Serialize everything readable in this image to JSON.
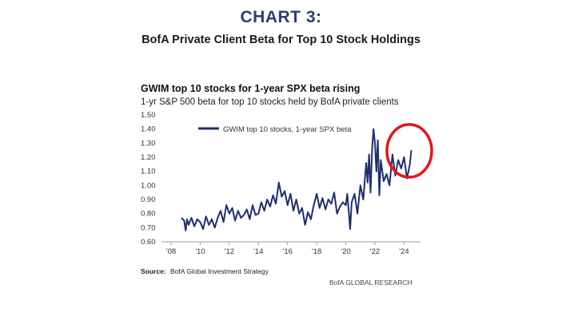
{
  "header": {
    "chart_number": "CHART 3:",
    "subtitle": "BofA Private Client Beta for Top 10 Stock Holdings"
  },
  "chart_data": {
    "type": "line",
    "title": "GWIM top 10 stocks for 1-year SPX beta rising",
    "subtitle": "1-yr S&P 500 beta for top 10 stocks held by BofA private clients",
    "xlabel": "",
    "ylabel": "",
    "ylim": [
      0.6,
      1.5
    ],
    "xlim": [
      2008,
      2024.8
    ],
    "y_ticks": [
      "1.50",
      "1.40",
      "1.30",
      "1.20",
      "1.10",
      "1.00",
      "0.90",
      "0.80",
      "0.70",
      "0.60"
    ],
    "y_tick_values": [
      1.5,
      1.4,
      1.3,
      1.2,
      1.1,
      1.0,
      0.9,
      0.8,
      0.7,
      0.6
    ],
    "x_ticks": [
      "'08",
      "'10",
      "'12",
      "'14",
      "'16",
      "'18",
      "'20",
      "'22",
      "'24"
    ],
    "x_tick_values": [
      2008,
      2010,
      2012,
      2014,
      2016,
      2018,
      2020,
      2022,
      2024
    ],
    "legend_position": "top-left",
    "series": [
      {
        "name": "GWIM top 10 stocks, 1-year SPX beta",
        "color": "#1f2f6e",
        "x": [
          2008.7,
          2008.9,
          2009.0,
          2009.1,
          2009.2,
          2009.4,
          2009.6,
          2009.8,
          2010.0,
          2010.2,
          2010.4,
          2010.6,
          2010.8,
          2011.0,
          2011.2,
          2011.4,
          2011.6,
          2011.8,
          2012.0,
          2012.2,
          2012.4,
          2012.6,
          2012.8,
          2013.0,
          2013.2,
          2013.4,
          2013.6,
          2013.8,
          2014.0,
          2014.2,
          2014.4,
          2014.6,
          2014.8,
          2015.0,
          2015.2,
          2015.4,
          2015.6,
          2015.8,
          2016.0,
          2016.2,
          2016.4,
          2016.6,
          2016.8,
          2017.0,
          2017.2,
          2017.4,
          2017.6,
          2017.8,
          2018.0,
          2018.2,
          2018.4,
          2018.6,
          2018.8,
          2019.0,
          2019.2,
          2019.4,
          2019.6,
          2019.8,
          2020.0,
          2020.1,
          2020.2,
          2020.3,
          2020.4,
          2020.6,
          2020.8,
          2021.0,
          2021.2,
          2021.4,
          2021.5,
          2021.6,
          2021.7,
          2021.8,
          2021.9,
          2022.0,
          2022.1,
          2022.2,
          2022.3,
          2022.4,
          2022.6,
          2022.8,
          2023.0,
          2023.2,
          2023.4,
          2023.6,
          2023.8,
          2024.0,
          2024.2,
          2024.4,
          2024.5
        ],
        "values": [
          0.77,
          0.75,
          0.68,
          0.76,
          0.72,
          0.77,
          0.71,
          0.76,
          0.74,
          0.69,
          0.78,
          0.72,
          0.76,
          0.7,
          0.77,
          0.82,
          0.74,
          0.86,
          0.8,
          0.84,
          0.75,
          0.82,
          0.77,
          0.79,
          0.83,
          0.76,
          0.86,
          0.79,
          0.8,
          0.88,
          0.82,
          0.9,
          0.85,
          0.93,
          0.87,
          1.02,
          0.92,
          0.96,
          0.86,
          0.94,
          0.82,
          0.9,
          0.8,
          0.84,
          0.72,
          0.81,
          0.76,
          0.86,
          0.94,
          0.84,
          0.91,
          0.83,
          0.9,
          0.87,
          0.95,
          0.8,
          0.85,
          0.88,
          0.86,
          0.94,
          0.82,
          0.69,
          0.88,
          0.94,
          0.8,
          1.0,
          0.9,
          1.16,
          1.02,
          1.22,
          0.95,
          1.25,
          1.4,
          1.3,
          1.1,
          1.32,
          0.93,
          1.18,
          1.03,
          1.08,
          1.0,
          1.22,
          1.07,
          1.18,
          1.12,
          1.2,
          1.05,
          1.15,
          1.25
        ]
      }
    ],
    "annotations": [
      "red circle around 2023-2024 rise"
    ]
  },
  "footer": {
    "source_label": "Source:",
    "source_text": "BofA Global Investment Strategy",
    "brand": "BofA GLOBAL RESEARCH"
  },
  "colors": {
    "heading": "#2e3e6e",
    "line": "#1f2f6e",
    "highlight": "#e3161b",
    "axis": "#9a9a9a"
  }
}
